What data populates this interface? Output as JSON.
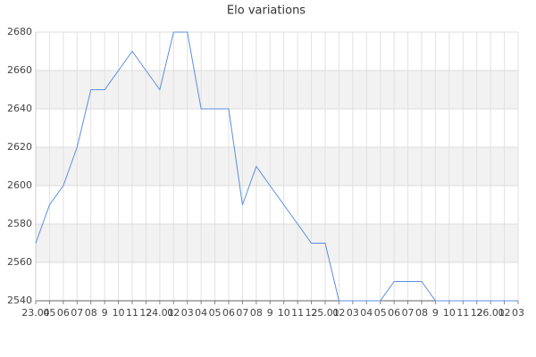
{
  "chart_data": {
    "type": "line",
    "title": "Elo variations",
    "categories": [
      "23.04",
      "05",
      "06",
      "07",
      "08",
      "9",
      "10",
      "11",
      "12",
      "24.01",
      "02",
      "03",
      "04",
      "05",
      "06",
      "07",
      "08",
      "9",
      "10",
      "11",
      "12",
      "25.01",
      "02",
      "03",
      "04",
      "05",
      "06",
      "07",
      "08",
      "9",
      "10",
      "11",
      "12",
      "26.01",
      "02",
      "03"
    ],
    "values": [
      2570,
      2590,
      2600,
      2620,
      2650,
      2650,
      2660,
      2670,
      2660,
      2650,
      2680,
      2680,
      2640,
      2640,
      2640,
      2590,
      2610,
      2600,
      2590,
      2580,
      2570,
      2570,
      2540,
      2540,
      2540,
      2540,
      2550,
      2550,
      2550,
      2540,
      2540,
      2540,
      2540,
      2540,
      2540,
      2540
    ],
    "color": "#5b8fe0",
    "ylim": [
      2540,
      2680
    ],
    "yticks": [
      2540,
      2560,
      2580,
      2600,
      2620,
      2640,
      2660,
      2680
    ],
    "grid": true,
    "bands": true
  }
}
